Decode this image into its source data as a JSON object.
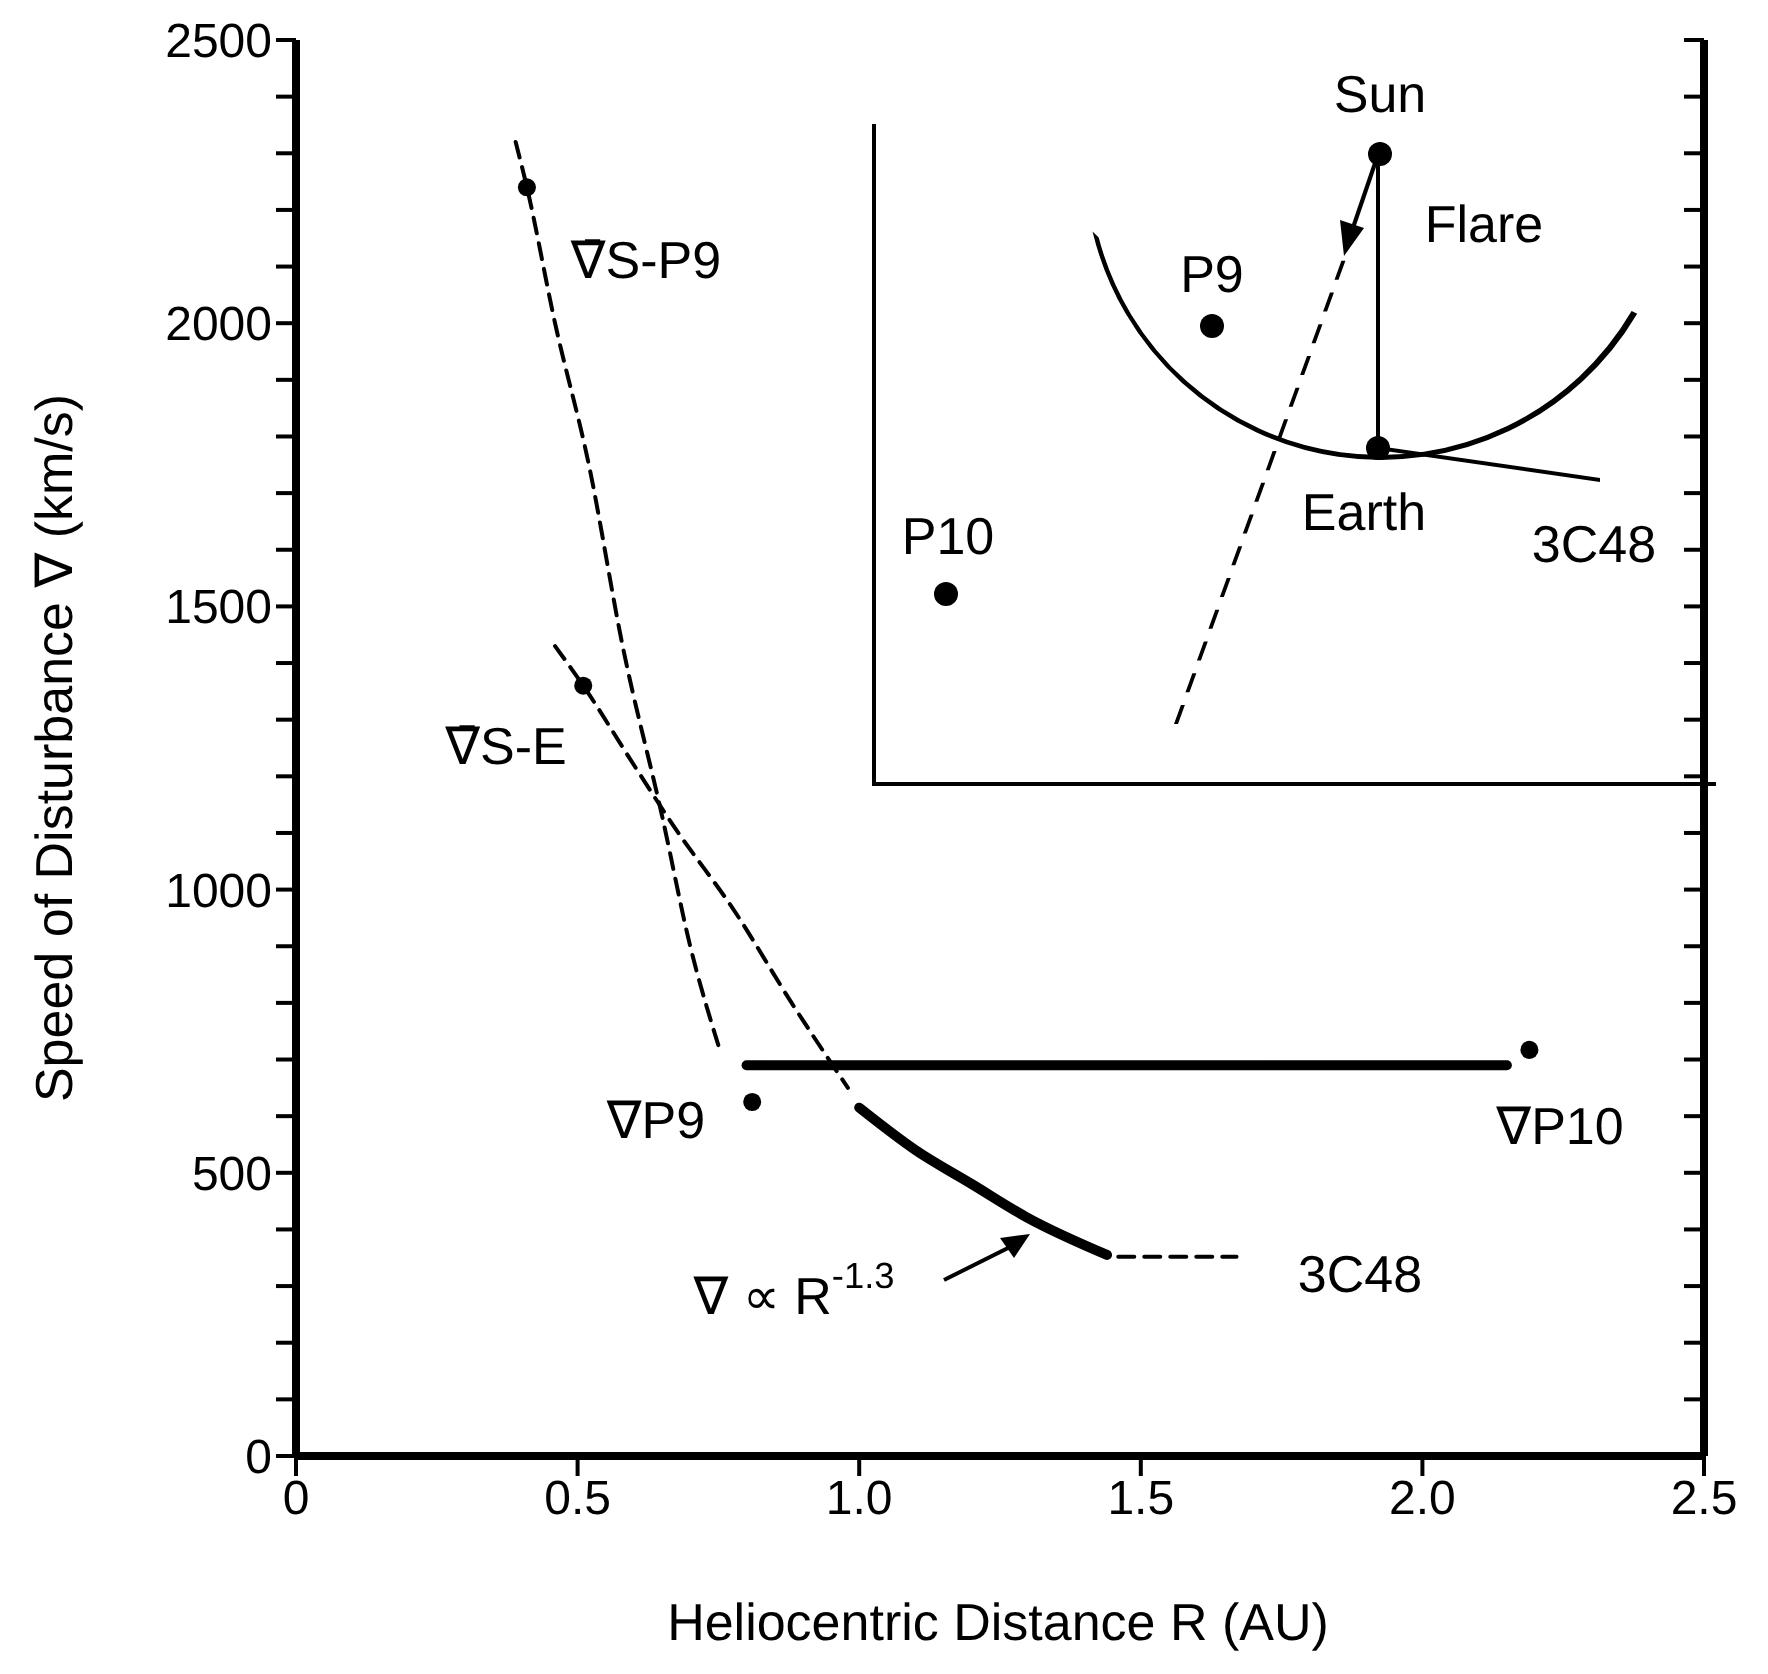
{
  "chart_data": {
    "type": "line",
    "xlabel": "Heliocentric Distance R (AU)",
    "ylabel": "Speed of Disturbance ∇ (km/s)",
    "xlim": [
      0,
      2.5
    ],
    "ylim": [
      0,
      2500
    ],
    "xticks": [
      0,
      {
        "value": 0.5,
        "label": "0.5"
      },
      {
        "value": 1,
        "label": "1.0"
      },
      {
        "value": 1.5,
        "label": "1.5"
      },
      {
        "value": 2,
        "label": "2.0"
      },
      {
        "value": 2.5,
        "label": "2.5"
      }
    ],
    "yticks": [
      0,
      {
        "value": 100,
        "label": null
      },
      {
        "value": 200,
        "label": null
      },
      {
        "value": 300,
        "label": null
      },
      {
        "value": 400,
        "label": null
      },
      500,
      {
        "value": 600,
        "label": null
      },
      {
        "value": 700,
        "label": null
      },
      {
        "value": 800,
        "label": null
      },
      {
        "value": 900,
        "label": null
      },
      1000,
      {
        "value": 1100,
        "label": null
      },
      {
        "value": 1200,
        "label": null
      },
      {
        "value": 1300,
        "label": null
      },
      {
        "value": 1400,
        "label": null
      },
      1500,
      {
        "value": 1600,
        "label": null
      },
      {
        "value": 1700,
        "label": null
      },
      {
        "value": 1800,
        "label": null
      },
      {
        "value": 1900,
        "label": null
      },
      2000,
      {
        "value": 2100,
        "label": null
      },
      {
        "value": 2200,
        "label": null
      },
      {
        "value": 2300,
        "label": null
      },
      {
        "value": 2400,
        "label": null
      },
      2500
    ],
    "series": [
      {
        "type": "scatter",
        "color": "#000000",
        "marker": "circle",
        "x": [
          0.41,
          0.51,
          0.81,
          2.19
        ],
        "values": [
          2240,
          1360,
          625,
          717
        ]
      },
      {
        "color": "#000000",
        "line_style": "dashed",
        "marker": "none",
        "x": [
          0.39,
          0.41,
          0.46,
          0.52,
          0.58,
          0.65,
          0.7,
          0.75
        ],
        "values": [
          2320,
          2240,
          2000,
          1750,
          1430,
          1130,
          900,
          725
        ]
      },
      {
        "color": "#000000",
        "line_style": "dashed",
        "marker": "none",
        "x": [
          0.46,
          0.51,
          0.6,
          0.67,
          0.78,
          0.88,
          0.98
        ],
        "values": [
          1430,
          1360,
          1220,
          1113,
          960,
          800,
          650
        ]
      },
      {
        "color": "#000000",
        "line_style": "solid",
        "marker": "none",
        "x": [
          0.8,
          2.15
        ],
        "values": [
          690,
          690
        ]
      },
      {
        "color": "#000000",
        "line_style": "solid",
        "marker": "none",
        "x": [
          1.0,
          1.1,
          1.2,
          1.3,
          1.44
        ],
        "values": [
          615,
          540,
          480,
          420,
          355
        ]
      },
      {
        "color": "#000000",
        "line_style": "dashed",
        "marker": "none",
        "x": [
          1.46,
          1.67
        ],
        "values": [
          352,
          352
        ]
      }
    ],
    "annotations": [
      "∇̄S-P9",
      "∇̄S-E",
      "∇P9",
      "∇P10",
      "∇ ∝ R$^{-1.3}$",
      "3C48",
      "Sun",
      "Flare",
      "P9",
      "P10",
      "Earth",
      "3C48"
    ]
  }
}
